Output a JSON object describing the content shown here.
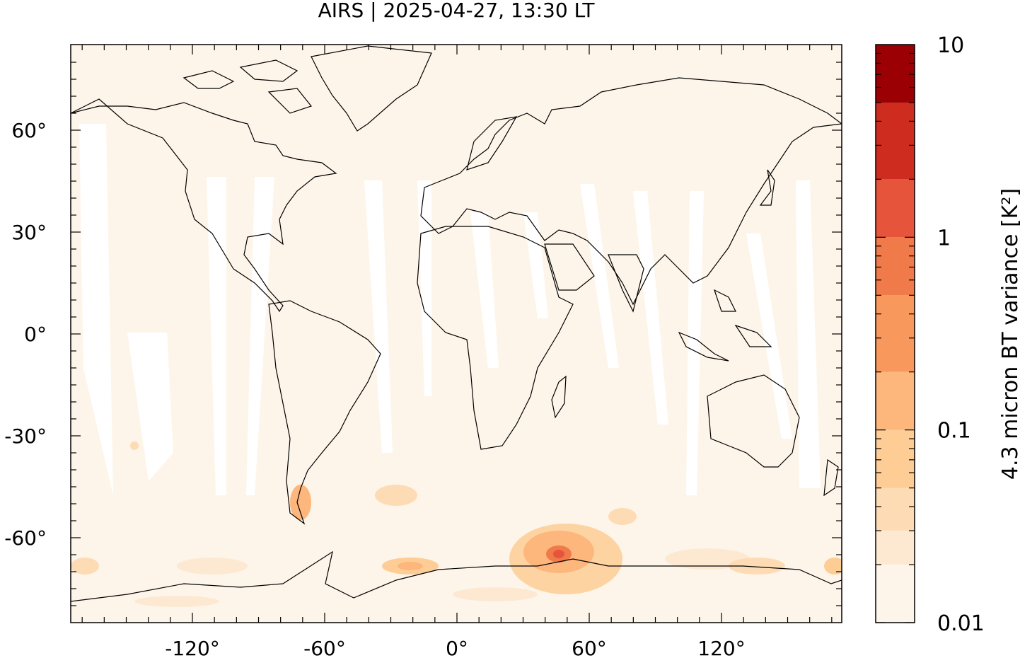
{
  "title": "AIRS | 2025-04-27, 13:30 LT",
  "map": {
    "x_ticks": [
      "-120°",
      "-60°",
      "0°",
      "60°",
      "120°"
    ],
    "y_ticks": [
      "60°",
      "30°",
      "0°",
      "-30°",
      "-60°"
    ],
    "background_color": "#fef5ea"
  },
  "colorbar": {
    "label": "4.3 micron BT variance [K²]",
    "tick_labels": [
      "10",
      "1",
      "0.1",
      "0.01"
    ],
    "scale": "log",
    "range": [
      0.01,
      10
    ],
    "levels": [
      {
        "from": 0.01,
        "to": 0.02,
        "color": "#fef5ea"
      },
      {
        "from": 0.02,
        "to": 0.03,
        "color": "#fde9d2"
      },
      {
        "from": 0.03,
        "to": 0.05,
        "color": "#fddcb5"
      },
      {
        "from": 0.05,
        "to": 0.1,
        "color": "#fdcd95"
      },
      {
        "from": 0.1,
        "to": 0.2,
        "color": "#fdb67b"
      },
      {
        "from": 0.2,
        "to": 0.5,
        "color": "#f9985c"
      },
      {
        "from": 0.5,
        "to": 1,
        "color": "#f07a4a"
      },
      {
        "from": 1,
        "to": 2,
        "color": "#e6553b"
      },
      {
        "from": 2,
        "to": 5,
        "color": "#cd2c1f"
      },
      {
        "from": 5,
        "to": 10,
        "color": "#9b0005"
      }
    ]
  }
}
